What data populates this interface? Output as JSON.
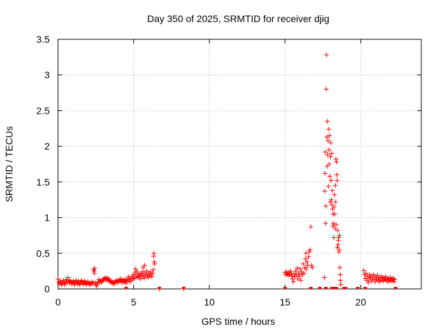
{
  "chart_data": {
    "type": "scatter",
    "title": "Day 350 of 2025, SRMTID for receiver djig",
    "xlabel": "GPS time / hours",
    "ylabel": "SRMTID / TECUs",
    "xlim": [
      0,
      24
    ],
    "ylim": [
      0,
      3.5
    ],
    "xticks": [
      0,
      5,
      10,
      15,
      20
    ],
    "xtick_labels": [
      "0",
      "5",
      "10",
      "15",
      "20"
    ],
    "yticks": [
      0,
      0.5,
      1,
      1.5,
      2,
      2.5,
      3,
      3.5
    ],
    "ytick_labels": [
      "0",
      "0.5",
      "1",
      "1.5",
      "2",
      "2.5",
      "3",
      "3.5"
    ],
    "grid": true,
    "marker": "+",
    "color": "#ff0000",
    "series": [
      {
        "name": "SRMTID",
        "points": [
          [
            0.0,
            0.14
          ],
          [
            0.05,
            0.1
          ],
          [
            0.1,
            0.07
          ],
          [
            0.15,
            0.11
          ],
          [
            0.2,
            0.08
          ],
          [
            0.25,
            0.06
          ],
          [
            0.3,
            0.09
          ],
          [
            0.35,
            0.12
          ],
          [
            0.4,
            0.08
          ],
          [
            0.45,
            0.06
          ],
          [
            0.5,
            0.1
          ],
          [
            0.55,
            0.13
          ],
          [
            0.6,
            0.09
          ],
          [
            0.65,
            0.16
          ],
          [
            0.7,
            0.11
          ],
          [
            0.75,
            0.08
          ],
          [
            0.8,
            0.12
          ],
          [
            0.85,
            0.1
          ],
          [
            0.9,
            0.07
          ],
          [
            0.95,
            0.09
          ],
          [
            1.0,
            0.11
          ],
          [
            1.05,
            0.08
          ],
          [
            1.1,
            0.06
          ],
          [
            1.15,
            0.1
          ],
          [
            1.2,
            0.12
          ],
          [
            1.25,
            0.09
          ],
          [
            1.3,
            0.07
          ],
          [
            1.35,
            0.11
          ],
          [
            1.4,
            0.08
          ],
          [
            1.45,
            0.06
          ],
          [
            1.5,
            0.09
          ],
          [
            1.55,
            0.12
          ],
          [
            1.6,
            0.1
          ],
          [
            1.65,
            0.07
          ],
          [
            1.7,
            0.08
          ],
          [
            1.75,
            0.11
          ],
          [
            1.8,
            0.09
          ],
          [
            1.85,
            0.06
          ],
          [
            1.9,
            0.08
          ],
          [
            1.95,
            0.1
          ],
          [
            2.0,
            0.07
          ],
          [
            2.05,
            0.09
          ],
          [
            2.1,
            0.06
          ],
          [
            2.15,
            0.08
          ],
          [
            2.2,
            0.07
          ],
          [
            2.25,
            0.1
          ],
          [
            2.3,
            0.08
          ],
          [
            2.35,
            0.27
          ],
          [
            2.38,
            0.25
          ],
          [
            2.4,
            0.22
          ],
          [
            2.42,
            0.29
          ],
          [
            2.45,
            0.09
          ],
          [
            2.5,
            0.06
          ],
          [
            2.55,
            0.04
          ],
          [
            2.6,
            0.07
          ],
          [
            2.65,
            0.1
          ],
          [
            2.7,
            0.13
          ],
          [
            2.75,
            0.1
          ],
          [
            2.8,
            0.12
          ],
          [
            2.85,
            0.09
          ],
          [
            2.9,
            0.11
          ],
          [
            2.95,
            0.13
          ],
          [
            3.0,
            0.12
          ],
          [
            3.05,
            0.15
          ],
          [
            3.1,
            0.13
          ],
          [
            3.15,
            0.16
          ],
          [
            3.2,
            0.14
          ],
          [
            3.25,
            0.12
          ],
          [
            3.3,
            0.15
          ],
          [
            3.35,
            0.13
          ],
          [
            3.4,
            0.11
          ],
          [
            3.45,
            0.1
          ],
          [
            3.5,
            0.12
          ],
          [
            3.55,
            0.09
          ],
          [
            3.6,
            0.08
          ],
          [
            3.65,
            0.1
          ],
          [
            3.7,
            0.07
          ],
          [
            3.75,
            0.09
          ],
          [
            3.8,
            0.11
          ],
          [
            3.85,
            0.1
          ],
          [
            3.9,
            0.12
          ],
          [
            3.95,
            0.09
          ],
          [
            4.0,
            0.11
          ],
          [
            4.05,
            0.13
          ],
          [
            4.1,
            0.1
          ],
          [
            4.15,
            0.14
          ],
          [
            4.2,
            0.12
          ],
          [
            4.25,
            0.09
          ],
          [
            4.3,
            0.11
          ],
          [
            4.35,
            0.13
          ],
          [
            4.4,
            0.1
          ],
          [
            4.45,
            0.12
          ],
          [
            4.5,
            0.08
          ],
          [
            4.55,
            0.14
          ],
          [
            4.6,
            0.11
          ],
          [
            4.65,
            0.17
          ],
          [
            4.7,
            0.13
          ],
          [
            4.75,
            0.1
          ],
          [
            4.8,
            0.15
          ],
          [
            4.85,
            0.12
          ],
          [
            4.9,
            0.18
          ],
          [
            4.95,
            0.14
          ],
          [
            5.0,
            0.2
          ],
          [
            5.05,
            0.15
          ],
          [
            5.1,
            0.23
          ],
          [
            5.12,
            0.28
          ],
          [
            5.15,
            0.18
          ],
          [
            5.2,
            0.25
          ],
          [
            5.25,
            0.16
          ],
          [
            5.3,
            0.21
          ],
          [
            5.35,
            0.17
          ],
          [
            5.4,
            0.2
          ],
          [
            5.45,
            0.14
          ],
          [
            5.5,
            0.22
          ],
          [
            5.55,
            0.18
          ],
          [
            5.6,
            0.24
          ],
          [
            5.62,
            0.3
          ],
          [
            5.65,
            0.19
          ],
          [
            5.7,
            0.15
          ],
          [
            5.72,
            0.33
          ],
          [
            5.75,
            0.22
          ],
          [
            5.8,
            0.18
          ],
          [
            5.85,
            0.25
          ],
          [
            5.9,
            0.2
          ],
          [
            5.95,
            0.16
          ],
          [
            6.0,
            0.22
          ],
          [
            6.05,
            0.18
          ],
          [
            6.1,
            0.24
          ],
          [
            6.15,
            0.2
          ],
          [
            6.2,
            0.17
          ],
          [
            6.25,
            0.22
          ],
          [
            6.3,
            0.27
          ],
          [
            6.32,
            0.46
          ],
          [
            6.34,
            0.5
          ],
          [
            6.36,
            0.38
          ],
          [
            6.38,
            0.35
          ],
          [
            6.7,
            0.0
          ],
          [
            8.3,
            0.0
          ],
          [
            15.0,
            0.23
          ],
          [
            15.05,
            0.2
          ],
          [
            15.1,
            0.24
          ],
          [
            15.15,
            0.21
          ],
          [
            15.2,
            0.19
          ],
          [
            15.25,
            0.23
          ],
          [
            15.3,
            0.2
          ],
          [
            15.35,
            0.25
          ],
          [
            15.4,
            0.22
          ],
          [
            15.45,
            0.18
          ],
          [
            15.5,
            0.14
          ],
          [
            15.55,
            0.1
          ],
          [
            15.6,
            0.21
          ],
          [
            15.65,
            0.17
          ],
          [
            15.7,
            0.25
          ],
          [
            15.75,
            0.2
          ],
          [
            15.8,
            0.29
          ],
          [
            15.85,
            0.14
          ],
          [
            15.9,
            0.22
          ],
          [
            15.95,
            0.18
          ],
          [
            16.0,
            0.28
          ],
          [
            16.05,
            0.12
          ],
          [
            16.1,
            0.24
          ],
          [
            16.15,
            0.2
          ],
          [
            16.2,
            0.35
          ],
          [
            16.25,
            0.22
          ],
          [
            16.3,
            0.3
          ],
          [
            16.35,
            0.42
          ],
          [
            16.38,
            0.5
          ],
          [
            16.4,
            0.28
          ],
          [
            16.45,
            0.38
          ],
          [
            16.5,
            0.33
          ],
          [
            16.55,
            0.45
          ],
          [
            16.6,
            0.52
          ],
          [
            16.65,
            0.55
          ],
          [
            16.7,
            0.87
          ],
          [
            16.75,
            0.33
          ],
          [
            16.8,
            0.3
          ],
          [
            17.6,
            0.16
          ],
          [
            17.62,
            1.37
          ],
          [
            17.64,
            1.62
          ],
          [
            17.66,
            1.92
          ],
          [
            17.68,
            0.92
          ],
          [
            17.7,
            1.16
          ],
          [
            17.72,
            2.8
          ],
          [
            17.74,
            3.28
          ],
          [
            17.76,
            2.13
          ],
          [
            17.78,
            1.72
          ],
          [
            17.8,
            2.35
          ],
          [
            17.82,
            1.88
          ],
          [
            17.84,
            2.08
          ],
          [
            17.86,
            1.44
          ],
          [
            17.88,
            2.24
          ],
          [
            17.9,
            1.95
          ],
          [
            17.92,
            1.75
          ],
          [
            17.94,
            2.15
          ],
          [
            17.96,
            1.58
          ],
          [
            17.98,
            1.22
          ],
          [
            18.0,
            1.85
          ],
          [
            18.02,
            2.05
          ],
          [
            18.04,
            1.52
          ],
          [
            18.06,
            1.25
          ],
          [
            18.08,
            1.9
          ],
          [
            18.1,
            1.18
          ],
          [
            18.12,
            1.38
          ],
          [
            18.14,
            1.12
          ],
          [
            18.16,
            0.88
          ],
          [
            18.18,
            1.05
          ],
          [
            18.2,
            0.92
          ],
          [
            18.22,
            0.72
          ],
          [
            18.24,
            1.15
          ],
          [
            18.26,
            1.32
          ],
          [
            18.28,
            1.05
          ],
          [
            18.3,
            0.85
          ],
          [
            18.32,
            1.45
          ],
          [
            18.34,
            1.22
          ],
          [
            18.36,
            1.82
          ],
          [
            18.38,
            0.9
          ],
          [
            18.4,
            1.78
          ],
          [
            18.42,
            1.6
          ],
          [
            18.44,
            1.52
          ],
          [
            18.46,
            0.58
          ],
          [
            18.48,
            0.82
          ],
          [
            18.5,
            0.62
          ],
          [
            18.52,
            0.68
          ],
          [
            18.54,
            0.72
          ],
          [
            18.56,
            0.52
          ],
          [
            18.58,
            0.55
          ],
          [
            18.6,
            0.75
          ],
          [
            18.62,
            0.3
          ],
          [
            18.64,
            0.2
          ],
          [
            18.66,
            0.12
          ],
          [
            18.68,
            0.06
          ],
          [
            20.2,
            0.26
          ],
          [
            20.25,
            0.2
          ],
          [
            20.3,
            0.15
          ],
          [
            20.35,
            0.22
          ],
          [
            20.4,
            0.12
          ],
          [
            20.45,
            0.18
          ],
          [
            20.5,
            0.09
          ],
          [
            20.55,
            0.14
          ],
          [
            20.6,
            0.2
          ],
          [
            20.65,
            0.16
          ],
          [
            20.7,
            0.11
          ],
          [
            20.75,
            0.18
          ],
          [
            20.8,
            0.13
          ],
          [
            20.85,
            0.2
          ],
          [
            20.9,
            0.15
          ],
          [
            20.95,
            0.1
          ],
          [
            21.0,
            0.17
          ],
          [
            21.05,
            0.13
          ],
          [
            21.1,
            0.19
          ],
          [
            21.15,
            0.12
          ],
          [
            21.2,
            0.16
          ],
          [
            21.25,
            0.1
          ],
          [
            21.3,
            0.14
          ],
          [
            21.35,
            0.18
          ],
          [
            21.4,
            0.12
          ],
          [
            21.45,
            0.16
          ],
          [
            21.5,
            0.11
          ],
          [
            21.55,
            0.15
          ],
          [
            21.6,
            0.13
          ],
          [
            21.65,
            0.17
          ],
          [
            21.7,
            0.12
          ],
          [
            21.75,
            0.15
          ],
          [
            21.8,
            0.1
          ],
          [
            21.85,
            0.14
          ],
          [
            21.9,
            0.12
          ],
          [
            21.95,
            0.16
          ],
          [
            22.0,
            0.11
          ],
          [
            22.05,
            0.14
          ],
          [
            22.1,
            0.12
          ],
          [
            22.15,
            0.15
          ],
          [
            22.2,
            0.1
          ],
          [
            22.25,
            0.13
          ]
        ],
        "zero_markers": [
          4.5,
          6.7,
          8.3,
          15.0,
          16.7,
          17.3,
          17.7,
          18.1,
          18.3,
          18.4,
          18.9,
          19.0,
          19.8,
          20.3,
          22.3
        ]
      }
    ]
  }
}
